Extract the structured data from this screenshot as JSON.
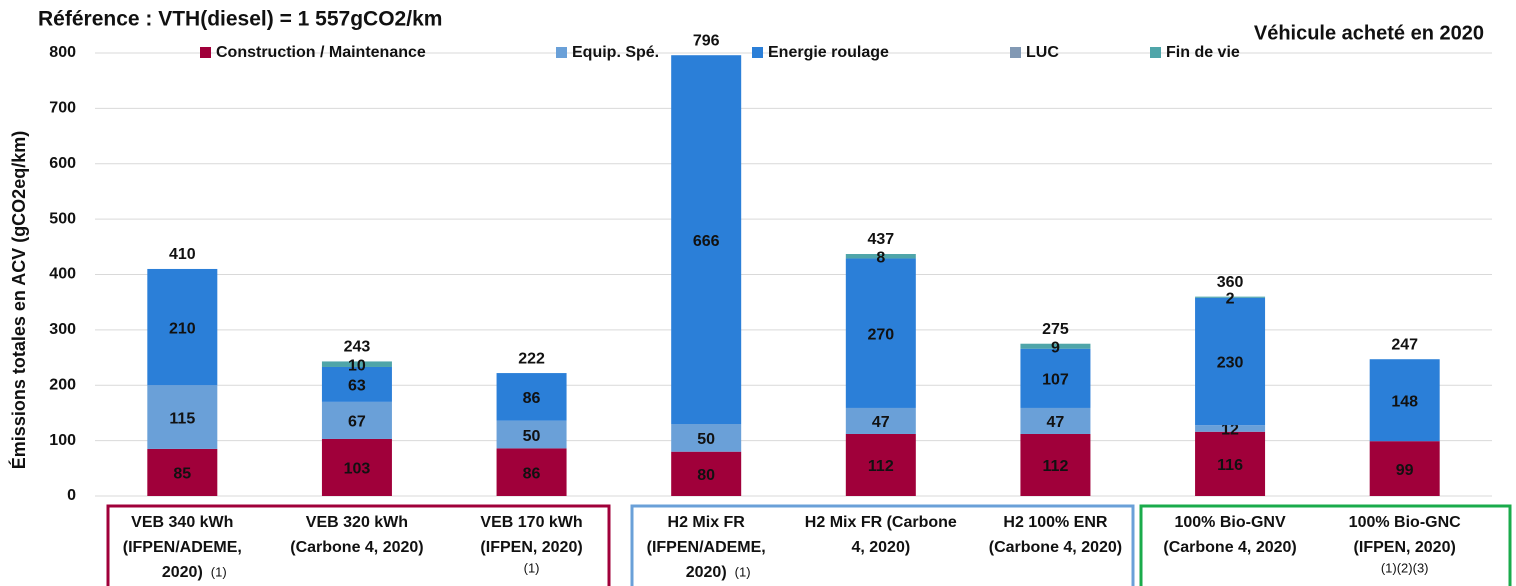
{
  "chart_data": {
    "type": "stacked-bar",
    "title": "Référence : VTH(diesel) = 1 557gCO2/km",
    "subtitle": "Véhicule acheté en 2020",
    "y_label": "Émissions totales en ACV (gCO2eq/km)",
    "categories": [
      [
        "VEB 340 kWh",
        "(IFPEN/ADEME,",
        "2020)"
      ],
      [
        "VEB 320 kWh",
        "(Carbone 4, 2020)"
      ],
      [
        "VEB 170 kWh",
        "(IFPEN, 2020)"
      ],
      [
        "H2 Mix FR",
        "(IFPEN/ADEME,",
        "2020)"
      ],
      [
        "H2 Mix FR (Carbone",
        "4, 2020)"
      ],
      [
        "H2 100% ENR",
        "(Carbone 4, 2020)"
      ],
      [
        "100% Bio-GNV",
        "(Carbone 4, 2020)"
      ],
      [
        "100% Bio-GNC",
        "(IFPEN, 2020)"
      ]
    ],
    "footnotes": [
      "(1)",
      null,
      "(1)",
      "(1)",
      null,
      null,
      null,
      "(1)(2)(3)"
    ],
    "series": [
      {
        "name": "Construction / Maintenance",
        "color": "#a0003a",
        "values": [
          85,
          103,
          86,
          80,
          112,
          112,
          116,
          99
        ]
      },
      {
        "name": "Equip. Spé.",
        "color": "#6aa0d8",
        "values": [
          115,
          67,
          50,
          50,
          47,
          47,
          12,
          null
        ]
      },
      {
        "name": "Energie roulage",
        "color": "#2b7fd8",
        "values": [
          210,
          63,
          86,
          666,
          270,
          107,
          230,
          148
        ]
      },
      {
        "name": "LUC",
        "color": "#8299b4",
        "values": [
          null,
          null,
          null,
          null,
          null,
          null,
          null,
          null
        ]
      },
      {
        "name": "Fin de vie",
        "color": "#4fa5a9",
        "values": [
          null,
          10,
          null,
          null,
          8,
          9,
          2,
          null
        ]
      }
    ],
    "totals": [
      410,
      243,
      222,
      796,
      437,
      275,
      360,
      247
    ],
    "ylim": [
      0,
      800
    ],
    "yticks": [
      0,
      100,
      200,
      300,
      400,
      500,
      600,
      700,
      800
    ],
    "grid": true
  }
}
